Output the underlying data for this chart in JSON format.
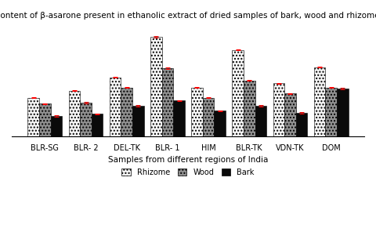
{
  "title": "Content of β-asarone present in ethanolic extract of dried samples of bark, wood and rhizome.",
  "xlabel": "Samples from different regions of India",
  "ylabel": "",
  "categories": [
    "BLR-SG",
    "BLR- 2",
    "DEL-TK",
    "BLR- 1",
    "HIM",
    "BLR-TK",
    "VDN-TK",
    "DOM"
  ],
  "rhizome": [
    3.8,
    4.5,
    5.8,
    9.8,
    4.8,
    8.5,
    5.2,
    6.8
  ],
  "wood": [
    3.2,
    3.3,
    4.8,
    6.7,
    3.8,
    5.5,
    4.2,
    4.8
  ],
  "bark": [
    2.0,
    2.2,
    3.0,
    3.5,
    2.5,
    3.0,
    2.3,
    4.7
  ],
  "rhizome_color": "#f5f5f5",
  "wood_color": "#909090",
  "bark_color": "#0a0a0a",
  "rhizome_hatch": "....",
  "wood_hatch": "....",
  "bark_hatch": "",
  "error_color": "red",
  "error_capsize": 2,
  "bar_width": 0.28,
  "ylim": [
    0,
    11
  ],
  "grid_color": "#d0d0d0",
  "background_color": "#ffffff",
  "legend_labels": [
    "Rhizome",
    "Wood",
    "Bark"
  ],
  "title_fontsize": 7.5,
  "axis_fontsize": 7.5,
  "tick_fontsize": 7.0
}
